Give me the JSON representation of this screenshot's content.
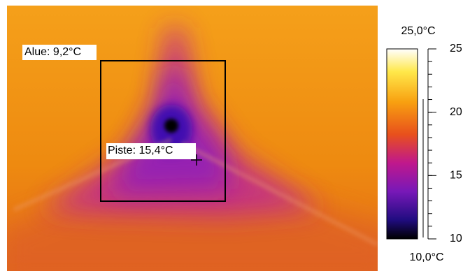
{
  "area_label": "Alue: 9,2°C",
  "spot_label": "Piste: 15,4°C",
  "scale": {
    "max_label": "25,0°C",
    "min_label": "10,0°C",
    "range": [
      10,
      25
    ],
    "ticks": [
      25,
      20,
      15,
      10
    ]
  }
}
